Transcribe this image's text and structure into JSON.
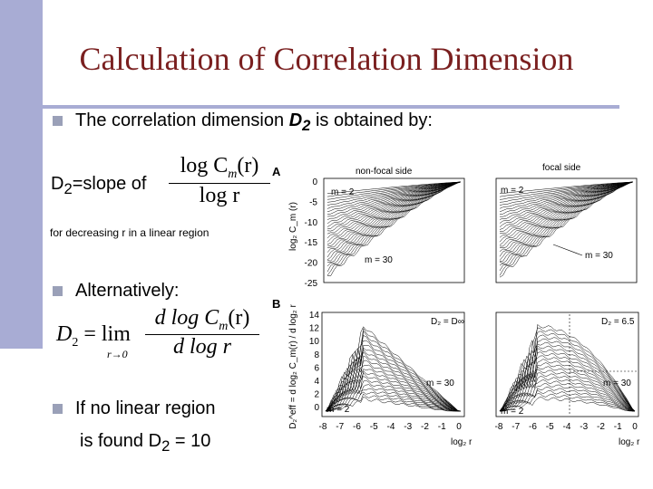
{
  "slide": {
    "title": "Calculation of Correlation Dimension",
    "bullets": [
      {
        "pre": "The correlation dimension ",
        "bold": "D",
        "sub": "2",
        "post": " is obtained by:"
      },
      {
        "text": "Alternatively:"
      },
      {
        "line1": "If no linear region",
        "line2_pre": "is found D",
        "line2_sub": "2",
        "line2_post": " = 10"
      }
    ],
    "slope_prefix": "D",
    "slope_sub": "2",
    "slope_text": "=slope of",
    "formula1": {
      "num": "log C",
      "num_sub": "m",
      "num_arg": "(r)",
      "den": "log r"
    },
    "decreasing_note": "for decreasing r in a linear region",
    "formula2": {
      "lhs": "D",
      "lhs_sub": "2",
      "eq": " = lim",
      "limit_sub": "r→0",
      "num": "d log C",
      "num_sub": "m",
      "num_arg": "(r)",
      "den": "d log r"
    }
  },
  "figure": {
    "panel_A_label": "A",
    "panel_B_label": "B",
    "a_left_title": "non-focal side",
    "a_right_title": "focal side",
    "a_ylabel": "log₂ C_m (r)",
    "a_yticks": [
      "0",
      "-5",
      "-10",
      "-15",
      "-20",
      "-25"
    ],
    "m_low": "m = 2",
    "m_high": "m = 30",
    "b_yticks": [
      "14",
      "12",
      "10",
      "8",
      "6",
      "4",
      "2",
      "0"
    ],
    "b_ylabel": "D₂^eff = d log₂ C_m(r) / d log₂ r",
    "b_left_d2": "D₂ = D∞",
    "b_right_d2": "D₂ = 6.5",
    "b_xticks": [
      "-8",
      "-7",
      "-6",
      "-5",
      "-4",
      "-3",
      "-2",
      "-1",
      "0"
    ],
    "b_xlabel": "log₂ r"
  }
}
